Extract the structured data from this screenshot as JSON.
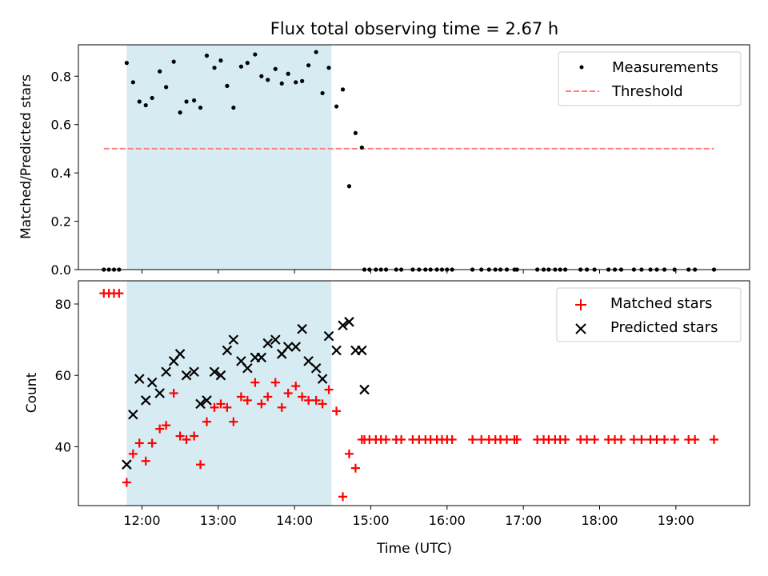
{
  "chart_data": [
    {
      "type": "scatter",
      "title": "Flux total observing time = 2.67 h",
      "ylabel": "Matched/Predicted stars",
      "xlabel": "",
      "ylim": [
        0,
        0.93
      ],
      "yticks": [
        "0.0",
        "0.2",
        "0.4",
        "0.6",
        "0.8"
      ],
      "legend_position": "top-right",
      "grid": false,
      "highlight_span": {
        "start": "11:48",
        "end": "14:29",
        "color": "#add8e6"
      },
      "threshold": {
        "name": "Threshold",
        "value": 0.5,
        "x_start": "11:30",
        "x_end": "19:30",
        "color": "#ff7f7f"
      },
      "series": [
        {
          "name": "Measurements",
          "color": "#000000",
          "marker": "dot",
          "points": [
            [
              "11:30",
              0
            ],
            [
              "11:34",
              0
            ],
            [
              "11:38",
              0
            ],
            [
              "11:42",
              0
            ],
            [
              "11:48",
              0.855
            ],
            [
              "11:53",
              0.775
            ],
            [
              "11:58",
              0.695
            ],
            [
              "12:03",
              0.68
            ],
            [
              "12:08",
              0.71
            ],
            [
              "12:14",
              0.82
            ],
            [
              "12:19",
              0.755
            ],
            [
              "12:25",
              0.86
            ],
            [
              "12:30",
              0.65
            ],
            [
              "12:35",
              0.695
            ],
            [
              "12:41",
              0.7
            ],
            [
              "12:46",
              0.67
            ],
            [
              "12:51",
              0.885
            ],
            [
              "12:57",
              0.835
            ],
            [
              "13:02",
              0.865
            ],
            [
              "13:07",
              0.76
            ],
            [
              "13:12",
              0.67
            ],
            [
              "13:18",
              0.84
            ],
            [
              "13:23",
              0.855
            ],
            [
              "13:29",
              0.89
            ],
            [
              "13:34",
              0.8
            ],
            [
              "13:39",
              0.785
            ],
            [
              "13:45",
              0.83
            ],
            [
              "13:50",
              0.77
            ],
            [
              "13:55",
              0.81
            ],
            [
              "14:01",
              0.775
            ],
            [
              "14:06",
              0.78
            ],
            [
              "14:11",
              0.845
            ],
            [
              "14:17",
              0.9
            ],
            [
              "14:22",
              0.73
            ],
            [
              "14:27",
              0.835
            ],
            [
              "14:33",
              0.675
            ],
            [
              "14:38",
              0.745
            ],
            [
              "14:43",
              0.345
            ],
            [
              "14:48",
              0.565
            ],
            [
              "14:53",
              0.505
            ],
            [
              "14:55",
              0
            ],
            [
              "14:59",
              0
            ],
            [
              "15:04",
              0
            ],
            [
              "15:08",
              0
            ],
            [
              "15:12",
              0
            ],
            [
              "15:20",
              0
            ],
            [
              "15:24",
              0
            ],
            [
              "15:33",
              0
            ],
            [
              "15:38",
              0
            ],
            [
              "15:43",
              0
            ],
            [
              "15:47",
              0
            ],
            [
              "15:52",
              0
            ],
            [
              "15:56",
              0
            ],
            [
              "16:00",
              0
            ],
            [
              "16:04",
              0
            ],
            [
              "16:20",
              0
            ],
            [
              "16:27",
              0
            ],
            [
              "16:33",
              0
            ],
            [
              "16:38",
              0
            ],
            [
              "16:42",
              0
            ],
            [
              "16:47",
              0
            ],
            [
              "16:53",
              0
            ],
            [
              "16:55",
              0
            ],
            [
              "17:11",
              0
            ],
            [
              "17:16",
              0
            ],
            [
              "17:20",
              0
            ],
            [
              "17:25",
              0
            ],
            [
              "17:29",
              0
            ],
            [
              "17:33",
              0
            ],
            [
              "17:45",
              0
            ],
            [
              "17:50",
              0
            ],
            [
              "17:56",
              0
            ],
            [
              "18:07",
              0
            ],
            [
              "18:12",
              0
            ],
            [
              "18:17",
              0
            ],
            [
              "18:27",
              0
            ],
            [
              "18:33",
              0
            ],
            [
              "18:40",
              0
            ],
            [
              "18:45",
              0
            ],
            [
              "18:51",
              0
            ],
            [
              "18:59",
              0
            ],
            [
              "19:10",
              0
            ],
            [
              "19:15",
              0
            ],
            [
              "19:30",
              0
            ]
          ]
        }
      ]
    },
    {
      "type": "scatter",
      "title": "",
      "ylabel": "Count",
      "xlabel": "Time (UTC)",
      "ylim": [
        23.5,
        86.5
      ],
      "yticks": [
        "40",
        "60",
        "80"
      ],
      "xticks": [
        "12:00",
        "13:00",
        "14:00",
        "15:00",
        "16:00",
        "17:00",
        "18:00",
        "19:00"
      ],
      "legend_position": "top-right",
      "grid": false,
      "highlight_span": {
        "start": "11:48",
        "end": "14:29",
        "color": "#add8e6"
      },
      "series": [
        {
          "name": "Matched stars",
          "color": "#ff0000",
          "marker": "plus",
          "points": [
            [
              "11:30",
              83
            ],
            [
              "11:34",
              83
            ],
            [
              "11:38",
              83
            ],
            [
              "11:42",
              83
            ],
            [
              "11:48",
              30
            ],
            [
              "11:53",
              38
            ],
            [
              "11:58",
              41
            ],
            [
              "12:03",
              36
            ],
            [
              "12:08",
              41
            ],
            [
              "12:14",
              45
            ],
            [
              "12:19",
              46
            ],
            [
              "12:25",
              55
            ],
            [
              "12:30",
              43
            ],
            [
              "12:35",
              42
            ],
            [
              "12:41",
              43
            ],
            [
              "12:46",
              35
            ],
            [
              "12:51",
              47
            ],
            [
              "12:57",
              51
            ],
            [
              "13:02",
              52
            ],
            [
              "13:07",
              51
            ],
            [
              "13:12",
              47
            ],
            [
              "13:18",
              54
            ],
            [
              "13:23",
              53
            ],
            [
              "13:29",
              58
            ],
            [
              "13:34",
              52
            ],
            [
              "13:39",
              54
            ],
            [
              "13:45",
              58
            ],
            [
              "13:50",
              51
            ],
            [
              "13:55",
              55
            ],
            [
              "14:01",
              57
            ],
            [
              "14:06",
              54
            ],
            [
              "14:11",
              53
            ],
            [
              "14:17",
              53
            ],
            [
              "14:22",
              52
            ],
            [
              "14:27",
              56
            ],
            [
              "14:33",
              50
            ],
            [
              "14:38",
              26
            ],
            [
              "14:43",
              38
            ],
            [
              "14:48",
              34
            ],
            [
              "14:53",
              42
            ],
            [
              "14:55",
              42
            ],
            [
              "14:59",
              42
            ],
            [
              "15:04",
              42
            ],
            [
              "15:08",
              42
            ],
            [
              "15:12",
              42
            ],
            [
              "15:20",
              42
            ],
            [
              "15:24",
              42
            ],
            [
              "15:33",
              42
            ],
            [
              "15:38",
              42
            ],
            [
              "15:43",
              42
            ],
            [
              "15:47",
              42
            ],
            [
              "15:52",
              42
            ],
            [
              "15:56",
              42
            ],
            [
              "16:00",
              42
            ],
            [
              "16:04",
              42
            ],
            [
              "16:20",
              42
            ],
            [
              "16:27",
              42
            ],
            [
              "16:33",
              42
            ],
            [
              "16:38",
              42
            ],
            [
              "16:42",
              42
            ],
            [
              "16:47",
              42
            ],
            [
              "16:53",
              42
            ],
            [
              "16:55",
              42
            ],
            [
              "17:11",
              42
            ],
            [
              "17:16",
              42
            ],
            [
              "17:20",
              42
            ],
            [
              "17:25",
              42
            ],
            [
              "17:29",
              42
            ],
            [
              "17:33",
              42
            ],
            [
              "17:45",
              42
            ],
            [
              "17:50",
              42
            ],
            [
              "17:56",
              42
            ],
            [
              "18:07",
              42
            ],
            [
              "18:12",
              42
            ],
            [
              "18:17",
              42
            ],
            [
              "18:27",
              42
            ],
            [
              "18:33",
              42
            ],
            [
              "18:40",
              42
            ],
            [
              "18:45",
              42
            ],
            [
              "18:51",
              42
            ],
            [
              "18:59",
              42
            ],
            [
              "19:10",
              42
            ],
            [
              "19:15",
              42
            ],
            [
              "19:30",
              42
            ]
          ]
        },
        {
          "name": "Predicted stars",
          "color": "#000000",
          "marker": "x",
          "points": [
            [
              "11:48",
              35
            ],
            [
              "11:53",
              49
            ],
            [
              "11:58",
              59
            ],
            [
              "12:03",
              53
            ],
            [
              "12:08",
              58
            ],
            [
              "12:14",
              55
            ],
            [
              "12:19",
              61
            ],
            [
              "12:25",
              64
            ],
            [
              "12:30",
              66
            ],
            [
              "12:35",
              60
            ],
            [
              "12:41",
              61
            ],
            [
              "12:46",
              52
            ],
            [
              "12:51",
              53
            ],
            [
              "12:57",
              61
            ],
            [
              "13:02",
              60
            ],
            [
              "13:07",
              67
            ],
            [
              "13:12",
              70
            ],
            [
              "13:18",
              64
            ],
            [
              "13:23",
              62
            ],
            [
              "13:29",
              65
            ],
            [
              "13:34",
              65
            ],
            [
              "13:39",
              69
            ],
            [
              "13:45",
              70
            ],
            [
              "13:50",
              66
            ],
            [
              "13:55",
              68
            ],
            [
              "14:01",
              68
            ],
            [
              "14:06",
              73
            ],
            [
              "14:11",
              64
            ],
            [
              "14:17",
              62
            ],
            [
              "14:22",
              59
            ],
            [
              "14:27",
              71
            ],
            [
              "14:33",
              67
            ],
            [
              "14:38",
              74
            ],
            [
              "14:43",
              75
            ],
            [
              "14:48",
              67
            ],
            [
              "14:53",
              67
            ],
            [
              "14:55",
              56
            ]
          ]
        }
      ]
    }
  ]
}
